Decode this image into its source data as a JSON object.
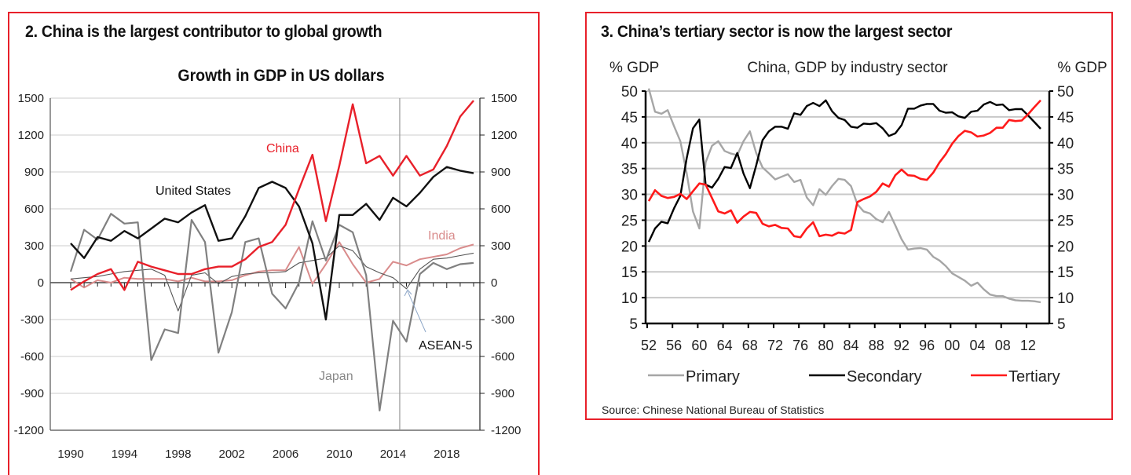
{
  "panels": {
    "left": {
      "title": "2. China is the largest contributor to global growth"
    },
    "right": {
      "title": "3. China’s tertiary sector is now the largest sector",
      "source": "Source: Chinese National Bureau of Statistics"
    }
  },
  "colors": {
    "border": "#e8202a",
    "china": "#e8202a",
    "us": "#111111",
    "japan": "#808080",
    "india": "#d98c8c",
    "asean": "#555555",
    "primary": "#a6a6a6",
    "secondary": "#000000",
    "tertiary": "#ff1a1a"
  },
  "chart_data": [
    {
      "type": "line",
      "title": "Growth in GDP in US dollars",
      "xlabel": "",
      "ylabel": "",
      "x": [
        1990,
        1991,
        1992,
        1993,
        1994,
        1995,
        1996,
        1997,
        1998,
        1999,
        2000,
        2001,
        2002,
        2003,
        2004,
        2005,
        2006,
        2007,
        2008,
        2009,
        2010,
        2011,
        2012,
        2013,
        2014,
        2015,
        2016,
        2017,
        2018,
        2019,
        2020
      ],
      "xticks": [
        "1990",
        "1994",
        "1998",
        "2002",
        "2006",
        "2010",
        "2014",
        "2018"
      ],
      "ylim": [
        -1200,
        1500
      ],
      "yticks": [
        "1500",
        "1200",
        "900",
        "600",
        "300",
        "0",
        "-300",
        "-600",
        "-900",
        "-1200"
      ],
      "right_axis_ticks": [
        "1500",
        "1200",
        "900",
        "600",
        "300",
        "0",
        "-300",
        "-600",
        "-900",
        "-1200"
      ],
      "vertical_marker_x": 2014.5,
      "grid": true,
      "series": [
        {
          "name": "China",
          "label": "China",
          "color_key": "china",
          "values": [
            -60,
            10,
            70,
            110,
            -60,
            170,
            130,
            100,
            70,
            70,
            110,
            130,
            130,
            190,
            290,
            330,
            470,
            760,
            1040,
            500,
            950,
            1450,
            970,
            1030,
            870,
            1030,
            870,
            920,
            1110,
            1350,
            1480
          ]
        },
        {
          "name": "United States",
          "label": "United States",
          "color_key": "us",
          "values": [
            320,
            200,
            370,
            340,
            420,
            360,
            440,
            520,
            490,
            570,
            630,
            340,
            360,
            540,
            770,
            820,
            770,
            620,
            320,
            -300,
            550,
            550,
            640,
            510,
            690,
            620,
            730,
            860,
            940,
            910,
            890
          ]
        },
        {
          "name": "Japan",
          "label": "Japan",
          "color_key": "japan",
          "values": [
            90,
            430,
            350,
            560,
            480,
            490,
            -630,
            -380,
            -410,
            510,
            330,
            -570,
            -240,
            330,
            360,
            -90,
            -210,
            0,
            500,
            180,
            470,
            410,
            60,
            -1040,
            -310,
            -480,
            70,
            160,
            110,
            150,
            160
          ]
        },
        {
          "name": "India",
          "label": "India",
          "color_key": "india",
          "values": [
            30,
            -40,
            20,
            0,
            40,
            30,
            30,
            30,
            10,
            40,
            10,
            10,
            20,
            60,
            90,
            100,
            100,
            290,
            -10,
            150,
            330,
            150,
            0,
            30,
            170,
            140,
            190,
            210,
            230,
            280,
            310
          ]
        },
        {
          "name": "ASEAN-5",
          "label": "ASEAN-5",
          "color_key": "asean",
          "values": [
            30,
            40,
            50,
            70,
            90,
            100,
            110,
            60,
            -230,
            60,
            80,
            -10,
            50,
            70,
            80,
            80,
            90,
            160,
            180,
            200,
            300,
            260,
            130,
            80,
            40,
            -50,
            110,
            190,
            200,
            220,
            240
          ]
        }
      ],
      "annotations": [
        "China",
        "United States",
        "India",
        "ASEAN-5",
        "Japan"
      ]
    },
    {
      "type": "line",
      "title": "China, GDP by industry sector",
      "ylabel_left": "% GDP",
      "ylabel_right": "% GDP",
      "ylim": [
        5,
        50
      ],
      "yticks": [
        "50",
        "45",
        "40",
        "35",
        "30",
        "25",
        "20",
        "15",
        "10",
        "5"
      ],
      "xticks": [
        "52",
        "56",
        "60",
        "64",
        "68",
        "72",
        "76",
        "80",
        "84",
        "88",
        "92",
        "96",
        "00",
        "04",
        "08",
        "12"
      ],
      "x": [
        1952,
        1953,
        1954,
        1955,
        1956,
        1957,
        1958,
        1959,
        1960,
        1961,
        1962,
        1963,
        1964,
        1965,
        1966,
        1967,
        1968,
        1969,
        1970,
        1971,
        1972,
        1973,
        1974,
        1975,
        1976,
        1977,
        1978,
        1979,
        1980,
        1981,
        1982,
        1983,
        1984,
        1985,
        1986,
        1987,
        1988,
        1989,
        1990,
        1991,
        1992,
        1993,
        1994,
        1995,
        1996,
        1997,
        1998,
        1999,
        2000,
        2001,
        2002,
        2003,
        2004,
        2005,
        2006,
        2007,
        2008,
        2009,
        2010,
        2011,
        2012,
        2013,
        2014
      ],
      "grid": true,
      "legend": "bottom",
      "series": [
        {
          "name": "Primary",
          "color_key": "primary",
          "values": [
            50.5,
            46,
            45.6,
            46.3,
            43.2,
            40.3,
            34.1,
            26.7,
            23.4,
            36.2,
            39.4,
            40.3,
            38.4,
            37.9,
            37.6,
            40.3,
            42.2,
            38.0,
            35.2,
            34.1,
            32.9,
            33.4,
            33.9,
            32.4,
            32.8,
            29.4,
            27.9,
            31.0,
            29.9,
            31.6,
            33.0,
            32.8,
            31.6,
            28.1,
            26.7,
            26.3,
            25.2,
            24.6,
            26.6,
            24.0,
            21.3,
            19.3,
            19.5,
            19.6,
            19.3,
            17.9,
            17.2,
            16.1,
            14.7,
            14.0,
            13.3,
            12.3,
            12.9,
            11.6,
            10.6,
            10.3,
            10.3,
            9.8,
            9.5,
            9.4,
            9.4,
            9.3,
            9.1
          ]
        },
        {
          "name": "Secondary",
          "color_key": "secondary",
          "values": [
            20.8,
            23.4,
            24.7,
            24.4,
            27.3,
            29.7,
            37.0,
            42.8,
            44.5,
            31.9,
            31.3,
            33.0,
            35.3,
            35.1,
            38.0,
            34.0,
            31.2,
            35.6,
            40.5,
            42.2,
            43.1,
            43.1,
            42.7,
            45.7,
            45.4,
            47.1,
            47.7,
            47.1,
            48.2,
            46.1,
            44.8,
            44.4,
            43.1,
            42.9,
            43.7,
            43.6,
            43.8,
            42.8,
            41.3,
            41.8,
            43.4,
            46.6,
            46.6,
            47.2,
            47.5,
            47.5,
            46.2,
            45.8,
            45.9,
            45.1,
            44.8,
            46.0,
            46.2,
            47.4,
            47.9,
            47.3,
            47.4,
            46.3,
            46.5,
            46.5,
            45.3,
            44.0,
            42.7
          ]
        },
        {
          "name": "Tertiary",
          "color_key": "tertiary",
          "values": [
            28.7,
            30.8,
            29.7,
            29.3,
            29.5,
            30.1,
            29.1,
            30.6,
            32.1,
            31.9,
            29.3,
            26.7,
            26.3,
            26.9,
            24.5,
            25.7,
            26.6,
            26.4,
            24.3,
            23.8,
            24.1,
            23.5,
            23.4,
            21.9,
            21.7,
            23.4,
            24.6,
            21.9,
            22.2,
            22.0,
            22.6,
            22.4,
            23.1,
            28.5,
            29.1,
            29.6,
            30.5,
            32.1,
            31.5,
            33.7,
            34.8,
            33.7,
            33.6,
            33.0,
            32.8,
            34.2,
            36.2,
            37.8,
            39.8,
            41.3,
            42.3,
            42.0,
            41.2,
            41.4,
            41.9,
            42.9,
            42.9,
            44.4,
            44.2,
            44.3,
            45.5,
            46.9,
            48.2
          ]
        }
      ],
      "legend_entries": [
        "Primary",
        "Secondary",
        "Tertiary"
      ]
    }
  ]
}
